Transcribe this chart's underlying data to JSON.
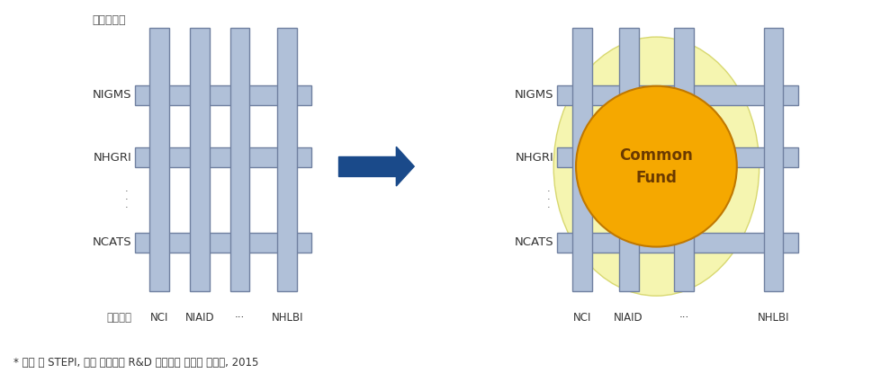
{
  "bg_color": "#ffffff",
  "bar_color": "#b0c0d8",
  "bar_edge_color": "#7080a0",
  "arrow_color": "#1a4a8a",
  "common_fund_color": "#f5a800",
  "common_fund_text_color": "#6b3a00",
  "yellow_circle_color": "#f5f5b0",
  "yellow_circle_edge": "#d8d870",
  "row_labels_left": [
    "NIGMS",
    "NHGRI",
    "NCATS"
  ],
  "row_labels_right": [
    "NIGMS",
    "NHGRI",
    "NCATS"
  ],
  "col_labels_left_prefix": "질환군별",
  "col_labels": [
    "NCI",
    "NIAID",
    "···",
    "NHLBI"
  ],
  "top_label": "연구영역별",
  "dots_label": "·\n·\n·",
  "common_fund_text": "Common\nFund",
  "footnote": "* 자료 ： STEPI, 미국 보건의료 R&D 시스템의 특징과 시사점, 2015",
  "fig_width": 9.89,
  "fig_height": 4.15
}
